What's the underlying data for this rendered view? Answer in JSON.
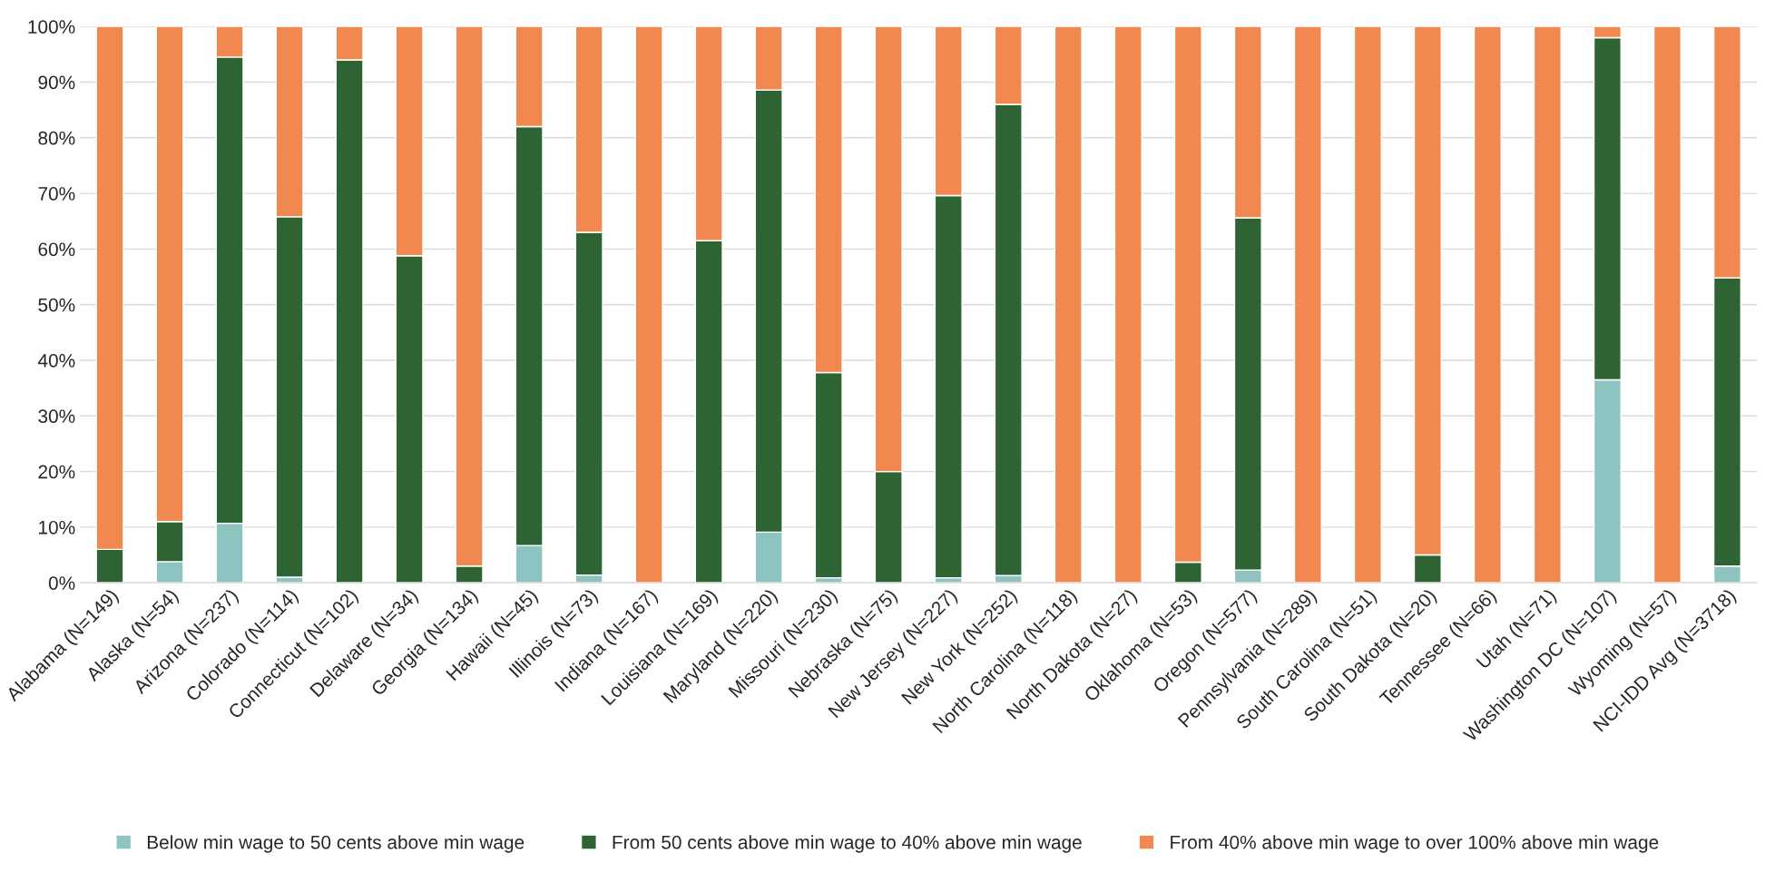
{
  "chart_data": {
    "type": "bar",
    "stacked": true,
    "categories": [
      "Alabama (N=149)",
      "Alaska (N=54)",
      "Arizona (N=237)",
      "Colorado (N=114)",
      "Connecticut (N=102)",
      "Delaware (N=34)",
      "Georgia (N=134)",
      "Hawaii (N=45)",
      "Illinois (N=73)",
      "Indiana (N=167)",
      "Louisiana (N=169)",
      "Maryland (N=220)",
      "Missouri (N=230)",
      "Nebraska (N=75)",
      "New Jersey (N=227)",
      "New York (N=252)",
      "North Carolina (N=118)",
      "North Dakota (N=27)",
      "Oklahoma (N=53)",
      "Oregon (N=577)",
      "Pennsylvania (N=289)",
      "South Carolina (N=51)",
      "South Dakota (N=20)",
      "Tennessee (N=66)",
      "Utah (N=71)",
      "Washington DC (N=107)",
      "Wyoming (N=57)",
      "NCI-IDD Avg (N=3718)"
    ],
    "series": [
      {
        "name": "Below min wage to 50 cents above min wage",
        "color": "#8dc3c1",
        "values": [
          0,
          3.8,
          10.7,
          1,
          0,
          0,
          0,
          6.7,
          1.4,
          0,
          0,
          9.1,
          0.9,
          0,
          0.9,
          1.3,
          0,
          0,
          0,
          2.3,
          0,
          0,
          0,
          0,
          0,
          36.5,
          0,
          3
        ]
      },
      {
        "name": "From 50 cents above min wage to 40% above min wage",
        "color": "#2e6434",
        "values": [
          6,
          7.2,
          83.8,
          64.8,
          94,
          58.8,
          3,
          75.3,
          61.6,
          0,
          61.5,
          79.5,
          36.9,
          20,
          68.7,
          84.7,
          0,
          0,
          3.7,
          63.3,
          0,
          0,
          5,
          0,
          0,
          61.5,
          0,
          51.8
        ]
      },
      {
        "name": "From 40% above min wage to over 100% above min wage",
        "color": "#f0884f",
        "values": [
          94,
          89,
          5.5,
          34.2,
          6,
          41.2,
          97,
          18,
          37,
          100,
          38.5,
          11.4,
          62.2,
          80,
          30.4,
          14,
          100,
          100,
          96.3,
          34.4,
          100,
          100,
          95,
          100,
          100,
          2,
          100,
          45.2
        ]
      }
    ],
    "ylim": [
      0,
      100
    ],
    "yticks": [
      {
        "value": 0,
        "label": "0%"
      },
      {
        "value": 10,
        "label": "10%"
      },
      {
        "value": 20,
        "label": "20%"
      },
      {
        "value": 30,
        "label": "30%"
      },
      {
        "value": 40,
        "label": "40%"
      },
      {
        "value": 50,
        "label": "50%"
      },
      {
        "value": 60,
        "label": "60%"
      },
      {
        "value": 70,
        "label": "70%"
      },
      {
        "value": 80,
        "label": "80%"
      },
      {
        "value": 90,
        "label": "90%"
      },
      {
        "value": 100,
        "label": "100%"
      }
    ],
    "grid": "y",
    "legend": "bottom"
  }
}
